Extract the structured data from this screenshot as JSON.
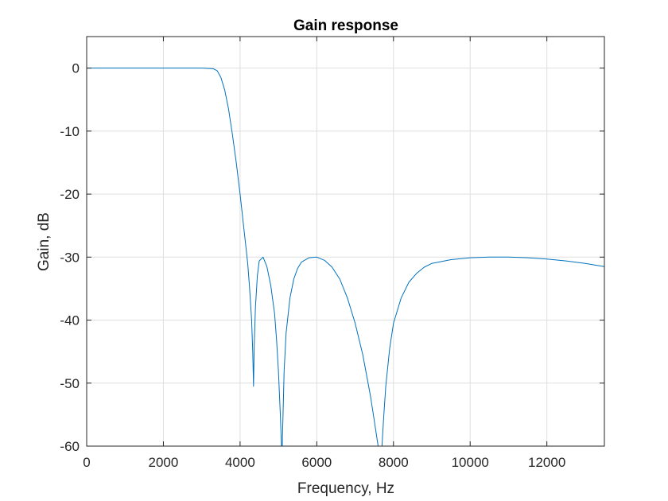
{
  "chart_data": {
    "type": "line",
    "title": "Gain response",
    "xlabel": "Frequency, Hz",
    "ylabel": "Gain, dB",
    "xlim": [
      0,
      13500
    ],
    "ylim": [
      -60,
      5
    ],
    "xticks": [
      0,
      2000,
      4000,
      6000,
      8000,
      10000,
      12000
    ],
    "xtick_labels": [
      "0",
      "2000",
      "4000",
      "6000",
      "8000",
      "10000",
      "12000"
    ],
    "yticks": [
      0,
      -10,
      -20,
      -30,
      -40,
      -50,
      -60
    ],
    "ytick_labels": [
      "0",
      "-10",
      "-20",
      "-30",
      "-40",
      "-50",
      "-60"
    ],
    "grid": true,
    "line_color": "#0072BD",
    "series": [
      {
        "x": [
          0,
          1000,
          2000,
          3000,
          3300,
          3400,
          3500,
          3600,
          3700,
          3800,
          3900,
          4000,
          4100,
          4200,
          4250,
          4300,
          4330,
          4350,
          4370,
          4400,
          4450,
          4500,
          4600,
          4700,
          4800,
          4900,
          4950,
          5000,
          5050,
          5080,
          5100,
          5120,
          5150,
          5200,
          5300,
          5400,
          5500,
          5600,
          5800,
          6000,
          6200,
          6400,
          6600,
          6800,
          7000,
          7200,
          7400,
          7500,
          7600,
          7650,
          7700,
          7750,
          7800,
          7900,
          8000,
          8200,
          8400,
          8600,
          8800,
          9000,
          9500,
          10000,
          10500,
          11000,
          11500,
          12000,
          12500,
          13000,
          13500
        ],
        "y": [
          0,
          0,
          0,
          0,
          -0.1,
          -0.4,
          -1.5,
          -3.5,
          -6.5,
          -10.5,
          -15,
          -20,
          -25.5,
          -31,
          -35,
          -40,
          -45,
          -50.5,
          -44,
          -38,
          -33,
          -30.6,
          -30,
          -31.5,
          -34.5,
          -39,
          -43,
          -48,
          -55,
          -60,
          -60,
          -55,
          -48,
          -42,
          -36.5,
          -33.5,
          -31.8,
          -30.8,
          -30.1,
          -30,
          -30.5,
          -31.6,
          -33.5,
          -36.5,
          -40.5,
          -45.5,
          -52,
          -56,
          -60,
          -60,
          -60,
          -55,
          -50.5,
          -44.5,
          -40.5,
          -36.5,
          -34,
          -32.6,
          -31.6,
          -31,
          -30.4,
          -30.1,
          -30,
          -30,
          -30.1,
          -30.3,
          -30.6,
          -31,
          -31.5
        ]
      }
    ]
  }
}
